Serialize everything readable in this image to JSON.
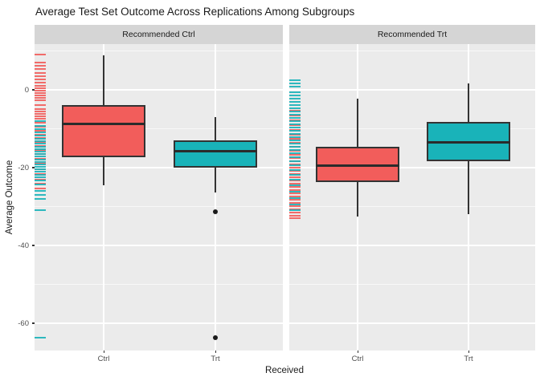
{
  "title": "Average Test Set Outcome Across Replications Among Subgroups",
  "colors": {
    "red": "#F25D5B",
    "teal": "#19B3B9",
    "panel_bg": "#EBEBEB",
    "strip_bg": "#D5D5D5",
    "gridline": "#FFFFFF",
    "box_border": "#333333",
    "tick_text": "#4D4D4D",
    "text": "#1A1A1A"
  },
  "chart_data": {
    "type": "boxplot",
    "title": "Average Test Set Outcome Across Replications Among Subgroups",
    "xlabel": "Received",
    "ylabel": "Average Outcome",
    "x_categories": [
      "Ctrl",
      "Trt"
    ],
    "ylim": [
      -67,
      12
    ],
    "y_axis": {
      "ticks": [
        0,
        -20,
        -40,
        -60
      ],
      "minor": [
        10,
        -10,
        -30,
        -50
      ]
    },
    "grid": "on",
    "legend": "none",
    "facets": [
      {
        "label": "Recommended Ctrl",
        "boxes": [
          {
            "category": "Ctrl",
            "color": "red",
            "whisker_low": -24.5,
            "q1": -17.3,
            "median": -8.7,
            "q3": -3.9,
            "whisker_high": 8.9,
            "outliers": []
          },
          {
            "category": "Trt",
            "color": "teal",
            "whisker_low": -26.4,
            "q1": -20.0,
            "median": -15.7,
            "q3": -13.0,
            "whisker_high": -7.0,
            "outliers": [
              -31.3,
              -63.7
            ]
          }
        ],
        "rug": {
          "red": [
            9.1,
            7.0,
            6.2,
            5.4,
            4.3,
            3.5,
            2.7,
            1.9,
            1.0,
            0.4,
            -0.2,
            -0.8,
            -1.4,
            -2.1,
            -2.7,
            -3.9,
            -4.9,
            -5.6,
            -6.2,
            -6.8,
            -7.4,
            -8.5,
            -9.5,
            -10.5,
            -11.5,
            -12.4,
            -13.4,
            -14.4,
            -15.5,
            -16.5,
            -17.7,
            -19.0,
            -20.4,
            -21.6,
            -23.1,
            -24.1,
            -25.4
          ],
          "teal": [
            -8.0,
            -9.3,
            -10.1,
            -10.9,
            -11.8,
            -12.6,
            -13.2,
            -13.8,
            -14.6,
            -15.3,
            -15.9,
            -16.5,
            -17.1,
            -17.9,
            -18.6,
            -19.2,
            -19.8,
            -20.4,
            -21.0,
            -21.9,
            -22.5,
            -23.3,
            -24.3,
            -26.0,
            -27.0,
            -28.0,
            -30.9,
            -63.7
          ]
        }
      },
      {
        "label": "Recommended Trt",
        "boxes": [
          {
            "category": "Ctrl",
            "color": "red",
            "whisker_low": -32.6,
            "q1": -23.7,
            "median": -19.4,
            "q3": -14.6,
            "whisker_high": -2.3,
            "outliers": []
          },
          {
            "category": "Trt",
            "color": "teal",
            "whisker_low": -32.0,
            "q1": -18.4,
            "median": -13.6,
            "q3": -8.2,
            "whisker_high": 1.6,
            "outliers": []
          }
        ],
        "rug": {
          "red": [
            -5.4,
            -6.6,
            -7.8,
            -9.1,
            -10.3,
            -11.5,
            -12.6,
            -13.6,
            -14.6,
            -15.7,
            -16.7,
            -17.5,
            -18.4,
            -19.2,
            -20.0,
            -20.8,
            -21.6,
            -22.5,
            -23.3,
            -24.1,
            -24.9,
            -25.8,
            -26.6,
            -27.4,
            -28.2,
            -29.1,
            -29.9,
            -30.7,
            -31.5,
            -32.4,
            -33.0
          ],
          "teal": [
            2.5,
            1.6,
            0.8,
            -0.6,
            -1.4,
            -2.3,
            -3.1,
            -3.9,
            -4.7,
            -5.6,
            -6.4,
            -7.2,
            -8.0,
            -8.9,
            -9.7,
            -10.5,
            -11.3,
            -12.2,
            -13.0,
            -13.8,
            -14.6,
            -15.5,
            -16.3,
            -17.3,
            -18.4,
            -19.4,
            -20.6,
            -21.9,
            -23.1,
            -24.5,
            -26.2,
            -27.8,
            -29.5,
            -30.9
          ]
        }
      }
    ]
  }
}
